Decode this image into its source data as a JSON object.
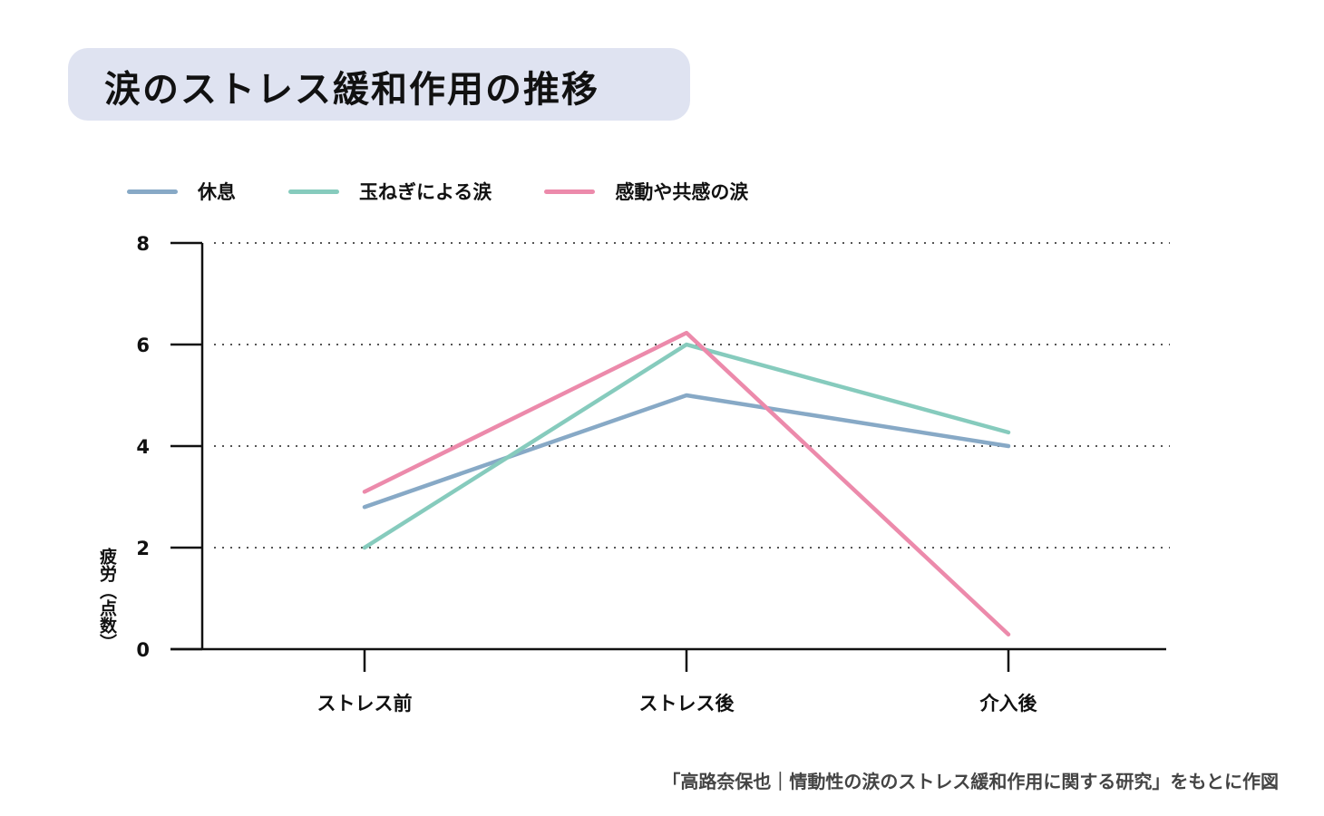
{
  "chart_data": {
    "type": "line",
    "title": "涙のストレス緩和作用の推移",
    "categories": [
      "ストレス前",
      "ストレス後",
      "介入後"
    ],
    "series": [
      {
        "name": "休息",
        "color": "#87a9c6",
        "values": [
          2.8,
          5.0,
          4.0
        ]
      },
      {
        "name": "玉ねぎによる涙",
        "color": "#86cbbd",
        "values": [
          2.0,
          6.0,
          4.27
        ]
      },
      {
        "name": "感動や共感の涙",
        "color": "#ec8aab",
        "values": [
          3.1,
          6.23,
          0.29
        ]
      }
    ],
    "ylabel": "疲労（点数）",
    "xlabel": "",
    "ylim": [
      0,
      8
    ],
    "yticks": [
      "0",
      "2",
      "4",
      "6",
      "8"
    ],
    "grid": "dotted horizontal",
    "legend": "top-left",
    "caption": "「高路奈保也｜情動性の涙のストレス緩和作用に関する研究」をもとに作図"
  }
}
